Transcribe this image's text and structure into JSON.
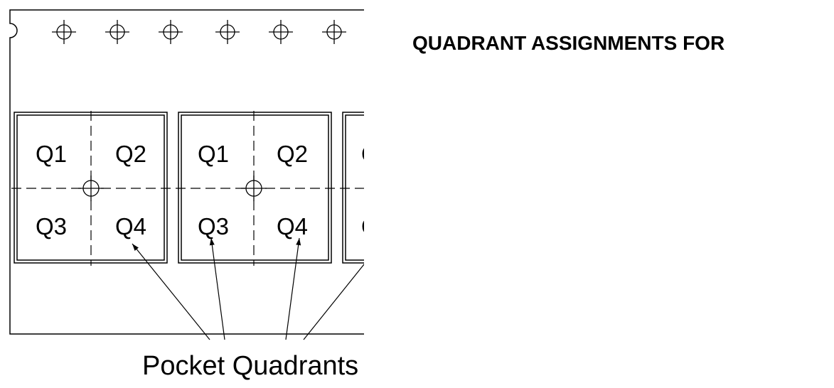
{
  "title": "QUADRANT ASSIGNMENTS FOR",
  "caption": "Pocket Quadrants",
  "quadrant_labels": [
    "Q1",
    "Q2",
    "Q3",
    "Q4"
  ],
  "colors": {
    "line": "#000000",
    "background": "#ffffff"
  }
}
